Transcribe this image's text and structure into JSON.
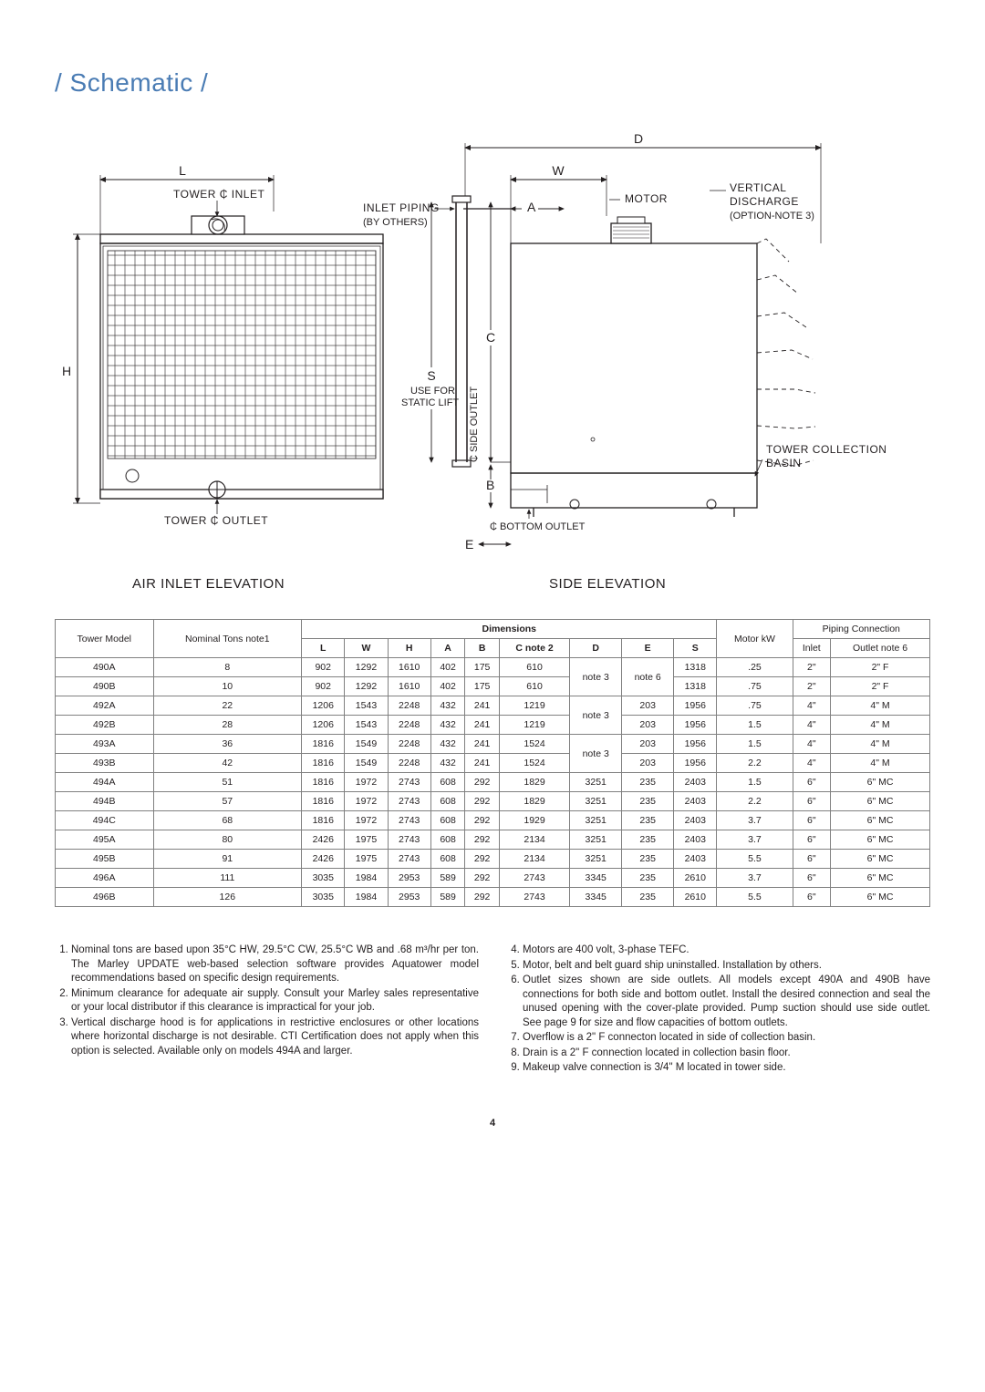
{
  "title": "/  Schematic  /",
  "elevations": {
    "left": "AIR INLET ELEVATION",
    "right": "SIDE ELEVATION"
  },
  "schematic": {
    "labels": {
      "L": "L",
      "tower_inlet": "TOWER ₵ INLET",
      "H": "H",
      "tower_outlet": "TOWER ₵ OUTLET",
      "inlet_piping": "INLET PIPING",
      "by_others": "(BY OTHERS)",
      "S": "S",
      "use_for": "USE FOR",
      "static_lift": "STATIC LIFT",
      "C": "C",
      "side_outlet": "₵ SIDE OUTLET",
      "B": "B",
      "bottom_outlet": "₵ BOTTOM OUTLET",
      "E": "E",
      "D": "D",
      "W": "W",
      "A": "A",
      "motor": "MOTOR",
      "vertical": "VERTICAL",
      "discharge": "DISCHARGE",
      "option": "(OPTION-NOTE 3)",
      "basin1": "TOWER COLLECTION",
      "basin2": "BASIN"
    },
    "colors": {
      "stroke": "#231f20",
      "hatch": "#231f20",
      "dashed": "#231f20"
    }
  },
  "table": {
    "headers": {
      "tower_model": "Tower Model",
      "nominal_tons": "Nominal Tons note1",
      "dimensions": "Dimensions",
      "L": "L",
      "W": "W",
      "H": "H",
      "A": "A",
      "B": "B",
      "C": "C note 2",
      "D": "D",
      "E": "E",
      "S": "S",
      "motor_kw": "Motor kW",
      "piping": "Piping Connection",
      "inlet": "Inlet",
      "outlet": "Outlet note 6"
    },
    "rows": [
      {
        "m": "490A",
        "t": "8",
        "L": "902",
        "W": "1292",
        "H": "1610",
        "A": "402",
        "B": "175",
        "C": "610",
        "D": "note 3",
        "Dspan": 2,
        "E": "note 6",
        "Espan": 2,
        "S": "1318",
        "kw": ".25",
        "in": "2\"",
        "out": "2\" F"
      },
      {
        "m": "490B",
        "t": "10",
        "L": "902",
        "W": "1292",
        "H": "1610",
        "A": "402",
        "B": "175",
        "C": "610",
        "S": "1318",
        "kw": ".75",
        "in": "2\"",
        "out": "2\" F"
      },
      {
        "m": "492A",
        "t": "22",
        "L": "1206",
        "W": "1543",
        "H": "2248",
        "A": "432",
        "B": "241",
        "C": "1219",
        "D": "note 3",
        "Dspan": 2,
        "E": "203",
        "S": "1956",
        "kw": ".75",
        "in": "4\"",
        "out": "4\" M"
      },
      {
        "m": "492B",
        "t": "28",
        "L": "1206",
        "W": "1543",
        "H": "2248",
        "A": "432",
        "B": "241",
        "C": "1219",
        "E": "203",
        "S": "1956",
        "kw": "1.5",
        "in": "4\"",
        "out": "4\" M"
      },
      {
        "m": "493A",
        "t": "36",
        "L": "1816",
        "W": "1549",
        "H": "2248",
        "A": "432",
        "B": "241",
        "C": "1524",
        "D": "note 3",
        "Dspan": 2,
        "E": "203",
        "S": "1956",
        "kw": "1.5",
        "in": "4\"",
        "out": "4\" M"
      },
      {
        "m": "493B",
        "t": "42",
        "L": "1816",
        "W": "1549",
        "H": "2248",
        "A": "432",
        "B": "241",
        "C": "1524",
        "E": "203",
        "S": "1956",
        "kw": "2.2",
        "in": "4\"",
        "out": "4\" M"
      },
      {
        "m": "494A",
        "t": "51",
        "L": "1816",
        "W": "1972",
        "H": "2743",
        "A": "608",
        "B": "292",
        "C": "1829",
        "D": "3251",
        "E": "235",
        "S": "2403",
        "kw": "1.5",
        "in": "6\"",
        "out": "6\" MC"
      },
      {
        "m": "494B",
        "t": "57",
        "L": "1816",
        "W": "1972",
        "H": "2743",
        "A": "608",
        "B": "292",
        "C": "1829",
        "D": "3251",
        "E": "235",
        "S": "2403",
        "kw": "2.2",
        "in": "6\"",
        "out": "6\" MC"
      },
      {
        "m": "494C",
        "t": "68",
        "L": "1816",
        "W": "1972",
        "H": "2743",
        "A": "608",
        "B": "292",
        "C": "1929",
        "D": "3251",
        "E": "235",
        "S": "2403",
        "kw": "3.7",
        "in": "6\"",
        "out": "6\" MC"
      },
      {
        "m": "495A",
        "t": "80",
        "L": "2426",
        "W": "1975",
        "H": "2743",
        "A": "608",
        "B": "292",
        "C": "2134",
        "D": "3251",
        "E": "235",
        "S": "2403",
        "kw": "3.7",
        "in": "6\"",
        "out": "6\" MC"
      },
      {
        "m": "495B",
        "t": "91",
        "L": "2426",
        "W": "1975",
        "H": "2743",
        "A": "608",
        "B": "292",
        "C": "2134",
        "D": "3251",
        "E": "235",
        "S": "2403",
        "kw": "5.5",
        "in": "6\"",
        "out": "6\" MC"
      },
      {
        "m": "496A",
        "t": "111",
        "L": "3035",
        "W": "1984",
        "H": "2953",
        "A": "589",
        "B": "292",
        "C": "2743",
        "D": "3345",
        "E": "235",
        "S": "2610",
        "kw": "3.7",
        "in": "6\"",
        "out": "6\" MC"
      },
      {
        "m": "496B",
        "t": "126",
        "L": "3035",
        "W": "1984",
        "H": "2953",
        "A": "589",
        "B": "292",
        "C": "2743",
        "D": "3345",
        "E": "235",
        "S": "2610",
        "kw": "5.5",
        "in": "6\"",
        "out": "6\" MC"
      }
    ]
  },
  "notes": {
    "left": [
      "Nominal tons are based upon 35°C HW, 29.5°C CW, 25.5°C WB and .68 m³/hr per ton. The Marley UPDATE web-based selection software provides Aquatower model recommendations based on specific design requirements.",
      "Minimum clearance for adequate air supply. Consult your Marley sales representative or your local distributor if this clearance is impractical for your job.",
      "Vertical discharge hood is for applications in restrictive enclosures or other locations where horizontal discharge is not desirable. CTI Certification does not apply when this option is selected. Available only on models 494A and larger."
    ],
    "right": [
      "Motors are 400 volt, 3-phase TEFC.",
      "Motor, belt and belt guard ship uninstalled. Installation by others.",
      "Outlet sizes shown are side outlets. All models except 490A and 490B have connections for both side and bottom outlet. Install the desired connection and seal the unused opening with the cover-plate provided. Pump suction should use side outlet. See page 9 for size and flow capacities of bottom outlets.",
      "Overflow is a 2\" F connecton located in side of collection basin.",
      "Drain is a 2\" F connection located in collection basin floor.",
      "Makeup valve connection is 3/4\" M located in tower side."
    ]
  },
  "page_number": "4"
}
